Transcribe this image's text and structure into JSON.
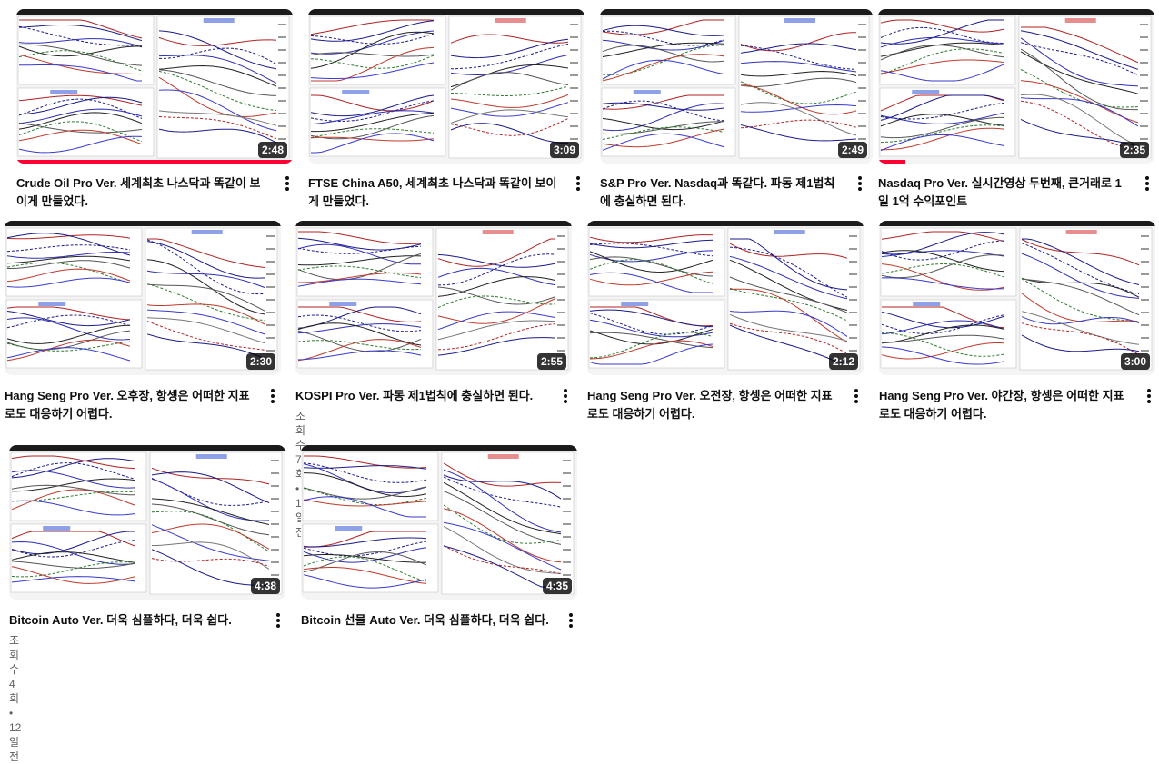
{
  "videos": [
    {
      "title": "Crude Oil Pro Ver. 세계최초 나스닥과 똑같이 보이게 만들었다.",
      "duration": "2:48",
      "meta": "",
      "progress": 1.0
    },
    {
      "title": "FTSE China A50, 세계최초 나스닥과 똑같이 보이게 만들었다.",
      "duration": "3:09",
      "meta": ""
    },
    {
      "title": "S&P Pro Ver. Nasdaq과 똑같다. 파동 제1법칙에 충실하면 된다.",
      "duration": "2:49",
      "meta": ""
    },
    {
      "title": "Nasdaq Pro Ver. 실시간영상 두번째, 큰거래로 1일 1억 수익포인트",
      "duration": "2:35",
      "meta": "",
      "progress": 0.1
    },
    {
      "title": "Hang Seng Pro Ver. 오후장, 항셍은 어떠한 지표로도 대응하기 어렵다.",
      "duration": "2:30",
      "meta": ""
    },
    {
      "title": "KOSPI Pro Ver. 파동 제1법칙에 충실하면 된다.",
      "duration": "2:55",
      "meta": "조회수 7회 • 11일 전"
    },
    {
      "title": "Hang Seng Pro Ver. 오전장, 항셍은 어떠한 지표로도 대응하기 어렵다.",
      "duration": "2:12",
      "meta": ""
    },
    {
      "title": "Hang Seng Pro Ver. 야간장, 항셍은 어떠한 지표로도 대응하기 어렵다.",
      "duration": "3:00",
      "meta": ""
    },
    {
      "title": "Bitcoin Auto Ver. 더욱 심플하다, 더욱 쉽다.",
      "duration": "4:38",
      "meta": "조회수 4회 • 12일 전"
    },
    {
      "title": "Bitcoin 선물 Auto Ver. 더욱 심플하다, 더욱 쉽다.",
      "duration": "4:35",
      "meta": ""
    }
  ],
  "icons": {
    "more": "more-vert-icon"
  },
  "colors": {
    "progress": "#ff0033",
    "duration_bg": "#000000",
    "title": "#0f0f0f",
    "meta": "#606060"
  }
}
